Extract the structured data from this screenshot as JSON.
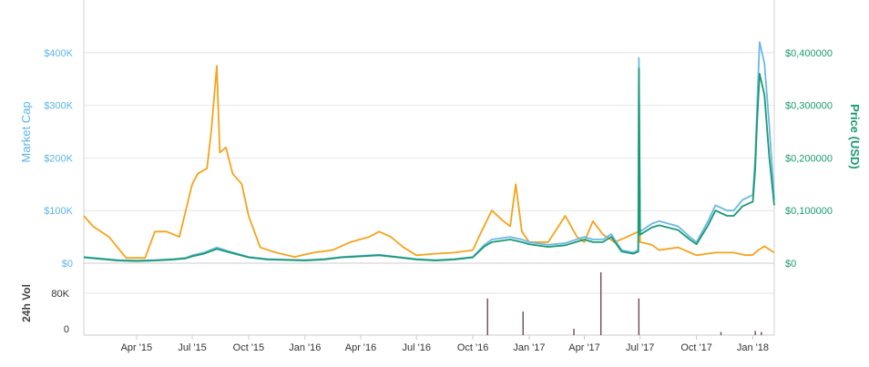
{
  "chart_data": {
    "type": "line",
    "colors": {
      "market_cap": "#6BB8E4",
      "price": "#1A9A73",
      "price_btc": "#F5A31A",
      "volume": "#6B4A5A",
      "left_axis": "#5BB5E8",
      "right_axis": "#1A9A73",
      "grid": "#E6E6E6"
    },
    "left_axis": {
      "title": "Market Cap",
      "ticks": [
        "$400K",
        "$300K",
        "$200K",
        "$100K",
        "$0"
      ],
      "values": [
        400000,
        300000,
        200000,
        100000,
        0
      ],
      "range": [
        0,
        500000
      ]
    },
    "right_axis": {
      "title": "Price (USD)",
      "ticks": [
        "$0,400000",
        "$0,300000",
        "$0,200000",
        "$0,100000",
        "$0"
      ],
      "values": [
        0.4,
        0.3,
        0.2,
        0.1,
        0
      ],
      "range": [
        0,
        0.5
      ]
    },
    "volume_axis": {
      "title": "24h Vol",
      "ticks": [
        "80K",
        "0"
      ],
      "values": [
        80000,
        0
      ],
      "range": [
        0,
        120000
      ]
    },
    "x_range": [
      "2015-01-05",
      "2018-02-05"
    ],
    "x_ticks": [
      {
        "label": "Apr '15",
        "date": "2015-04-01"
      },
      {
        "label": "Jul '15",
        "date": "2015-07-01"
      },
      {
        "label": "Oct '15",
        "date": "2015-10-01"
      },
      {
        "label": "Jan '16",
        "date": "2016-01-01"
      },
      {
        "label": "Apr '16",
        "date": "2016-04-01"
      },
      {
        "label": "Jul '16",
        "date": "2016-07-01"
      },
      {
        "label": "Oct '16",
        "date": "2016-10-01"
      },
      {
        "label": "Jan '17",
        "date": "2017-01-01"
      },
      {
        "label": "Apr '17",
        "date": "2017-04-01"
      },
      {
        "label": "Jul '17",
        "date": "2017-07-01"
      },
      {
        "label": "Oct '17",
        "date": "2017-10-01"
      },
      {
        "label": "Jan '18",
        "date": "2018-01-01"
      }
    ],
    "series": [
      {
        "axis": "left",
        "x": [
          "2015-01-05",
          "2015-02-01",
          "2015-03-01",
          "2015-04-01",
          "2015-05-01",
          "2015-06-01",
          "2015-06-20",
          "2015-07-01",
          "2015-07-20",
          "2015-08-10",
          "2015-09-01",
          "2015-10-01",
          "2015-11-01",
          "2015-12-01",
          "2016-01-01",
          "2016-02-01",
          "2016-03-01",
          "2016-04-01",
          "2016-05-01",
          "2016-06-01",
          "2016-07-01",
          "2016-08-01",
          "2016-09-01",
          "2016-10-01",
          "2016-10-20",
          "2016-11-01",
          "2016-12-01",
          "2016-12-20",
          "2017-01-01",
          "2017-02-01",
          "2017-03-01",
          "2017-04-01",
          "2017-04-15",
          "2017-05-01",
          "2017-05-15",
          "2017-06-01",
          "2017-06-20",
          "2017-06-28",
          "2017-06-29",
          "2017-07-01",
          "2017-07-20",
          "2017-08-01",
          "2017-09-01",
          "2017-09-20",
          "2017-10-01",
          "2017-10-20",
          "2017-11-01",
          "2017-11-20",
          "2017-12-01",
          "2017-12-15",
          "2018-01-01",
          "2018-01-05",
          "2018-01-08",
          "2018-01-12",
          "2018-01-20",
          "2018-01-28",
          "2018-02-05"
        ],
        "values": [
          12000,
          9000,
          6000,
          5000,
          6000,
          8000,
          10000,
          15000,
          20000,
          30000,
          22000,
          12000,
          8000,
          7000,
          6000,
          8000,
          12000,
          14000,
          16000,
          12000,
          8000,
          6000,
          8000,
          12000,
          35000,
          45000,
          50000,
          45000,
          40000,
          35000,
          38000,
          50000,
          45000,
          45000,
          55000,
          25000,
          20000,
          25000,
          390000,
          60000,
          75000,
          80000,
          70000,
          50000,
          40000,
          80000,
          110000,
          100000,
          100000,
          120000,
          130000,
          200000,
          300000,
          420000,
          380000,
          260000,
          120000
        ]
      },
      {
        "axis": "right",
        "x": [
          "2015-01-05",
          "2015-02-01",
          "2015-03-01",
          "2015-04-01",
          "2015-05-01",
          "2015-06-01",
          "2015-06-20",
          "2015-07-01",
          "2015-07-20",
          "2015-08-10",
          "2015-09-01",
          "2015-10-01",
          "2015-11-01",
          "2015-12-01",
          "2016-01-01",
          "2016-02-01",
          "2016-03-01",
          "2016-04-01",
          "2016-05-01",
          "2016-06-01",
          "2016-07-01",
          "2016-08-01",
          "2016-09-01",
          "2016-10-01",
          "2016-10-20",
          "2016-11-01",
          "2016-12-01",
          "2016-12-20",
          "2017-01-01",
          "2017-02-01",
          "2017-03-01",
          "2017-04-01",
          "2017-04-15",
          "2017-05-01",
          "2017-05-15",
          "2017-06-01",
          "2017-06-20",
          "2017-06-28",
          "2017-06-29",
          "2017-07-01",
          "2017-07-20",
          "2017-08-01",
          "2017-09-01",
          "2017-09-20",
          "2017-10-01",
          "2017-10-20",
          "2017-11-01",
          "2017-11-20",
          "2017-12-01",
          "2017-12-15",
          "2018-01-01",
          "2018-01-05",
          "2018-01-08",
          "2018-01-12",
          "2018-01-20",
          "2018-01-28",
          "2018-02-05"
        ],
        "values": [
          0.011,
          0.008,
          0.005,
          0.004,
          0.005,
          0.007,
          0.009,
          0.013,
          0.018,
          0.027,
          0.02,
          0.011,
          0.007,
          0.006,
          0.005,
          0.007,
          0.011,
          0.013,
          0.015,
          0.011,
          0.007,
          0.005,
          0.007,
          0.011,
          0.032,
          0.04,
          0.045,
          0.04,
          0.036,
          0.031,
          0.034,
          0.045,
          0.04,
          0.04,
          0.05,
          0.022,
          0.018,
          0.022,
          0.37,
          0.054,
          0.068,
          0.072,
          0.063,
          0.045,
          0.036,
          0.072,
          0.1,
          0.09,
          0.09,
          0.108,
          0.117,
          0.18,
          0.27,
          0.36,
          0.32,
          0.2,
          0.11
        ]
      },
      {
        "axis": "left",
        "x": [
          "2015-01-05",
          "2015-01-20",
          "2015-02-15",
          "2015-03-15",
          "2015-04-15",
          "2015-05-01",
          "2015-05-20",
          "2015-06-10",
          "2015-07-01",
          "2015-07-10",
          "2015-07-25",
          "2015-08-01",
          "2015-08-10",
          "2015-08-15",
          "2015-08-25",
          "2015-09-05",
          "2015-09-20",
          "2015-10-01",
          "2015-10-20",
          "2015-11-15",
          "2015-12-15",
          "2016-01-15",
          "2016-02-15",
          "2016-03-15",
          "2016-04-15",
          "2016-05-01",
          "2016-05-20",
          "2016-06-10",
          "2016-07-01",
          "2016-08-01",
          "2016-09-01",
          "2016-10-01",
          "2016-10-15",
          "2016-11-01",
          "2016-11-20",
          "2016-12-01",
          "2016-12-10",
          "2016-12-20",
          "2017-01-01",
          "2017-02-01",
          "2017-03-01",
          "2017-03-20",
          "2017-04-01",
          "2017-04-15",
          "2017-05-01",
          "2017-05-20",
          "2017-06-10",
          "2017-06-28",
          "2017-06-29",
          "2017-07-01",
          "2017-07-20",
          "2017-08-01",
          "2017-09-01",
          "2017-10-01",
          "2017-11-01",
          "2017-12-01",
          "2017-12-20",
          "2018-01-01",
          "2018-01-10",
          "2018-01-20",
          "2018-02-05"
        ],
        "values": [
          90000,
          70000,
          50000,
          10000,
          10000,
          60000,
          60000,
          50000,
          150000,
          170000,
          180000,
          250000,
          375000,
          210000,
          220000,
          170000,
          150000,
          90000,
          30000,
          20000,
          12000,
          20000,
          25000,
          40000,
          50000,
          60000,
          50000,
          30000,
          15000,
          18000,
          20000,
          25000,
          60000,
          100000,
          80000,
          70000,
          150000,
          60000,
          40000,
          40000,
          90000,
          50000,
          40000,
          80000,
          55000,
          40000,
          50000,
          60000,
          165000,
          40000,
          35000,
          25000,
          30000,
          15000,
          20000,
          20000,
          15000,
          16000,
          25000,
          32000,
          20000
        ]
      }
    ],
    "volume_spikes": [
      {
        "date": "2016-10-25",
        "value": 70000
      },
      {
        "date": "2016-12-22",
        "value": 45000
      },
      {
        "date": "2017-04-28",
        "value": 140000
      },
      {
        "date": "2017-06-29",
        "value": 70000
      },
      {
        "date": "2017-03-15",
        "value": 12000
      },
      {
        "date": "2017-11-10",
        "value": 6000
      },
      {
        "date": "2018-01-05",
        "value": 8000
      },
      {
        "date": "2018-01-15",
        "value": 6000
      }
    ]
  }
}
